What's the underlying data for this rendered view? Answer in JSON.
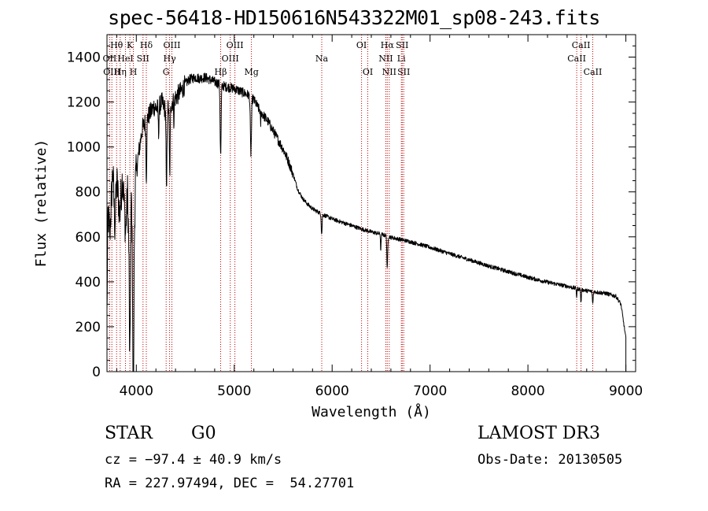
{
  "title": "spec-56418-HD150616N543322M01_sp08-243.fits",
  "info": {
    "object_type": "STAR",
    "subclass": "G0",
    "redshift_text": "cz = −97.4 ± 40.9 km/s",
    "coords_text": "RA = 227.97494, DEC =  54.27701",
    "survey": "LAMOST DR3",
    "obs_date_text": "Obs-Date: 20130505"
  },
  "chart_data": {
    "type": "line",
    "title": "spec-56418-HD150616N543322M01_sp08-243.fits",
    "xlabel": "Wavelength (Å)",
    "ylabel": "Flux (relative)",
    "xlim": [
      3700,
      9100
    ],
    "ylim": [
      0,
      1500
    ],
    "xticks": [
      4000,
      5000,
      6000,
      7000,
      8000,
      9000
    ],
    "yticks": [
      0,
      200,
      400,
      600,
      800,
      1000,
      1200,
      1400
    ],
    "x_minor_step": 200,
    "y_minor_step": 50,
    "grid": false,
    "spectrum_anchors": [
      [
        3700,
        250
      ],
      [
        3710,
        700
      ],
      [
        3730,
        620
      ],
      [
        3760,
        900
      ],
      [
        3780,
        650
      ],
      [
        3800,
        850
      ],
      [
        3830,
        700
      ],
      [
        3860,
        880
      ],
      [
        3890,
        620
      ],
      [
        3910,
        800
      ],
      [
        3930,
        420
      ],
      [
        3950,
        780
      ],
      [
        3968,
        320
      ],
      [
        3990,
        850
      ],
      [
        4020,
        960
      ],
      [
        4060,
        1080
      ],
      [
        4100,
        1120
      ],
      [
        4140,
        1150
      ],
      [
        4180,
        1180
      ],
      [
        4220,
        1170
      ],
      [
        4260,
        1200
      ],
      [
        4300,
        1160
      ],
      [
        4340,
        1180
      ],
      [
        4380,
        1210
      ],
      [
        4420,
        1230
      ],
      [
        4460,
        1250
      ],
      [
        4500,
        1280
      ],
      [
        4540,
        1300
      ],
      [
        4600,
        1310
      ],
      [
        4650,
        1305
      ],
      [
        4700,
        1310
      ],
      [
        4750,
        1300
      ],
      [
        4800,
        1290
      ],
      [
        4850,
        1280
      ],
      [
        4900,
        1270
      ],
      [
        4950,
        1265
      ],
      [
        5000,
        1260
      ],
      [
        5050,
        1250
      ],
      [
        5100,
        1240
      ],
      [
        5150,
        1230
      ],
      [
        5200,
        1210
      ],
      [
        5250,
        1170
      ],
      [
        5300,
        1140
      ],
      [
        5350,
        1110
      ],
      [
        5400,
        1070
      ],
      [
        5450,
        1030
      ],
      [
        5500,
        990
      ],
      [
        5550,
        940
      ],
      [
        5600,
        880
      ],
      [
        5650,
        810
      ],
      [
        5700,
        770
      ],
      [
        5750,
        745
      ],
      [
        5800,
        725
      ],
      [
        5850,
        712
      ],
      [
        5900,
        700
      ],
      [
        6000,
        680
      ],
      [
        6100,
        665
      ],
      [
        6200,
        650
      ],
      [
        6300,
        635
      ],
      [
        6400,
        622
      ],
      [
        6500,
        612
      ],
      [
        6600,
        598
      ],
      [
        6700,
        588
      ],
      [
        6800,
        578
      ],
      [
        6900,
        566
      ],
      [
        7000,
        553
      ],
      [
        7200,
        525
      ],
      [
        7400,
        498
      ],
      [
        7600,
        470
      ],
      [
        7800,
        445
      ],
      [
        8000,
        420
      ],
      [
        8200,
        398
      ],
      [
        8400,
        380
      ],
      [
        8600,
        360
      ],
      [
        8800,
        348
      ],
      [
        8900,
        335
      ],
      [
        8950,
        300
      ],
      [
        9000,
        150
      ]
    ],
    "absorption_lines": [
      {
        "wave": 3934,
        "depth": 450,
        "width": 6
      },
      {
        "wave": 3969,
        "depth": 700,
        "width": 6
      },
      {
        "wave": 4102,
        "depth": 250,
        "width": 6
      },
      {
        "wave": 4227,
        "depth": 120,
        "width": 4
      },
      {
        "wave": 4308,
        "depth": 380,
        "width": 6
      },
      {
        "wave": 4341,
        "depth": 300,
        "width": 6
      },
      {
        "wave": 4384,
        "depth": 100,
        "width": 4
      },
      {
        "wave": 4861,
        "depth": 320,
        "width": 7
      },
      {
        "wave": 5170,
        "depth": 250,
        "width": 8
      },
      {
        "wave": 5269,
        "depth": 60,
        "width": 4
      },
      {
        "wave": 5893,
        "depth": 90,
        "width": 6
      },
      {
        "wave": 6497,
        "depth": 80,
        "width": 4
      },
      {
        "wave": 6563,
        "depth": 150,
        "width": 6
      },
      {
        "wave": 8498,
        "depth": 40,
        "width": 4
      },
      {
        "wave": 8542,
        "depth": 60,
        "width": 5
      },
      {
        "wave": 8662,
        "depth": 55,
        "width": 5
      }
    ],
    "line_markers": [
      {
        "wave": 3727,
        "label": "OII",
        "row": 2
      },
      {
        "wave": 3750,
        "label": "OIII",
        "row": 3
      },
      {
        "wave": 3798,
        "label": "Hθ",
        "row": 1
      },
      {
        "wave": 3835,
        "label": "Hη",
        "row": 3
      },
      {
        "wave": 3889,
        "label": "HeI",
        "row": 2
      },
      {
        "wave": 3934,
        "label": "K",
        "row": 1
      },
      {
        "wave": 3969,
        "label": "H",
        "row": 3
      },
      {
        "wave": 4068,
        "label": "SII",
        "row": 2
      },
      {
        "wave": 4102,
        "label": "Hδ",
        "row": 1
      },
      {
        "wave": 4304,
        "label": "G",
        "row": 3
      },
      {
        "wave": 4340,
        "label": "Hγ",
        "row": 2
      },
      {
        "wave": 4363,
        "label": "OIII",
        "row": 1
      },
      {
        "wave": 4861,
        "label": "Hβ",
        "row": 3
      },
      {
        "wave": 4959,
        "label": "OIII",
        "row": 2
      },
      {
        "wave": 5007,
        "label": "OIII",
        "row": 1
      },
      {
        "wave": 5175,
        "label": "Mg",
        "row": 3
      },
      {
        "wave": 5894,
        "label": "Na",
        "row": 2
      },
      {
        "wave": 6300,
        "label": "OI",
        "row": 1
      },
      {
        "wave": 6364,
        "label": "OI",
        "row": 3
      },
      {
        "wave": 6548,
        "label": "NII",
        "row": 2
      },
      {
        "wave": 6563,
        "label": "Hα",
        "row": 1
      },
      {
        "wave": 6583,
        "label": "NII",
        "row": 3
      },
      {
        "wave": 6707,
        "label": "Li",
        "row": 2
      },
      {
        "wave": 6716,
        "label": "SII",
        "row": 1
      },
      {
        "wave": 6731,
        "label": "SII",
        "row": 3
      },
      {
        "wave": 8498,
        "label": "CaII",
        "row": 2
      },
      {
        "wave": 8542,
        "label": "CaII",
        "row": 1
      },
      {
        "wave": 8662,
        "label": "CaII",
        "row": 3
      }
    ]
  }
}
